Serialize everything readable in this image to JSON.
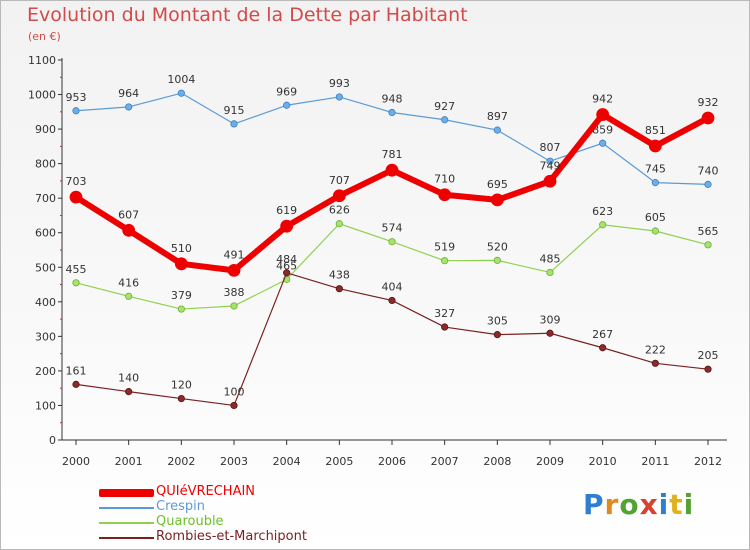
{
  "title": "Evolution du Montant de la Dette par Habitant",
  "subtitle": "(en €)",
  "logo": {
    "text": "Proxiti",
    "letter_colors": [
      "#2e7fd0",
      "#e08a1e",
      "#53a332",
      "#d8402f",
      "#2e7fd0",
      "#e0b21e",
      "#53a332"
    ]
  },
  "chart_data": {
    "type": "line",
    "title": "Evolution du Montant de la Dette par Habitant",
    "subtitle": "(en €)",
    "xlabel": "",
    "ylabel": "",
    "x": [
      "2000",
      "2001",
      "2002",
      "2003",
      "2004",
      "2005",
      "2006",
      "2007",
      "2008",
      "2009",
      "2010",
      "2011",
      "2012"
    ],
    "ylim": [
      0,
      1100
    ],
    "yticks": [
      "0",
      "100",
      "200",
      "300",
      "400",
      "500",
      "600",
      "700",
      "800",
      "900",
      "1000",
      "1100"
    ],
    "grid": false,
    "legend_position": "bottom-left",
    "series": [
      {
        "name": "Crespin",
        "color": "#5b9bd5",
        "values": [
          953,
          964,
          1004,
          915,
          969,
          993,
          948,
          927,
          897,
          807,
          859,
          745,
          740
        ],
        "labels": [
          "953",
          "964",
          "1004",
          "915",
          "969",
          "993",
          "948",
          "927",
          "897",
          "807",
          "859",
          "745",
          "740"
        ]
      },
      {
        "name": "Quarouble",
        "color": "#8fd14f",
        "values": [
          455,
          416,
          379,
          388,
          465,
          626,
          574,
          519,
          520,
          485,
          623,
          605,
          565
        ],
        "labels": [
          "455",
          "416",
          "379",
          "388",
          "465",
          "626",
          "574",
          "519",
          "520",
          "485",
          "623",
          "605",
          "565"
        ]
      },
      {
        "name": "Rombies-et-Marchipont",
        "color": "#7a2222",
        "values": [
          161,
          140,
          120,
          100,
          484,
          438,
          404,
          327,
          305,
          309,
          267,
          222,
          205
        ],
        "labels": [
          "161",
          "140",
          "120",
          "100",
          "484",
          "438",
          "404",
          "327",
          "305",
          "309",
          "267",
          "222",
          "205"
        ]
      },
      {
        "name": "QUIéVRECHAIN",
        "color": "#ee0000",
        "values": [
          703,
          607,
          510,
          491,
          619,
          707,
          781,
          710,
          695,
          749,
          942,
          851,
          932
        ],
        "labels": [
          "703",
          "607",
          "510",
          "491",
          "619",
          "707",
          "781",
          "710",
          "695",
          "749",
          "942",
          "851",
          "932"
        ]
      }
    ],
    "legend": [
      {
        "name": "QUIéVRECHAIN",
        "color": "#ee0000"
      },
      {
        "name": "Crespin",
        "color": "#5b9bd5"
      },
      {
        "name": "Quarouble",
        "color": "#8fd14f"
      },
      {
        "name": "Rombies-et-Marchipont",
        "color": "#7a2222"
      }
    ]
  }
}
